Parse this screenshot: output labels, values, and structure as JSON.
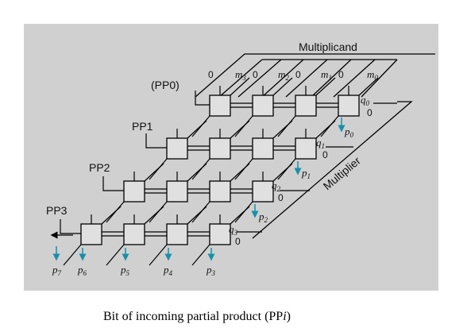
{
  "diagram": {
    "multiplicand_label": "Multiplicand",
    "multiplier_label": "Multiplier",
    "row_labels": [
      "(PP0)",
      "PP1",
      "PP2",
      "PP3"
    ],
    "top_inputs": [
      {
        "m": "m",
        "m_sub": "3",
        "zero": "0"
      },
      {
        "m": "m",
        "m_sub": "2",
        "zero": "0"
      },
      {
        "m": "m",
        "m_sub": "1",
        "zero": "0"
      },
      {
        "m": "m",
        "m_sub": "0",
        "zero": "0"
      }
    ],
    "top_left_zero": "0",
    "q_inputs": [
      {
        "q": "q",
        "q_sub": "0",
        "zero": "0"
      },
      {
        "q": "q",
        "q_sub": "1",
        "zero": "0"
      },
      {
        "q": "q",
        "q_sub": "2",
        "zero": "0"
      },
      {
        "q": "q",
        "q_sub": "3",
        "zero": "0"
      }
    ],
    "side_outputs": [
      {
        "p": "p",
        "sub": "0"
      },
      {
        "p": "p",
        "sub": "1"
      },
      {
        "p": "p",
        "sub": "2"
      }
    ],
    "bottom_outputs": [
      {
        "p": "p",
        "sub": "7"
      },
      {
        "p": "p",
        "sub": "6"
      },
      {
        "p": "p",
        "sub": "5"
      },
      {
        "p": "p",
        "sub": "4"
      },
      {
        "p": "p",
        "sub": "3"
      }
    ]
  },
  "caption": {
    "text": "Bit of incoming partial product (PP",
    "italic": "i",
    "close": ")"
  },
  "colors": {
    "panel": "#d0d0d0",
    "cell": "#e0e0e0",
    "arrow": "#1a8fa8",
    "line": "#000000"
  }
}
